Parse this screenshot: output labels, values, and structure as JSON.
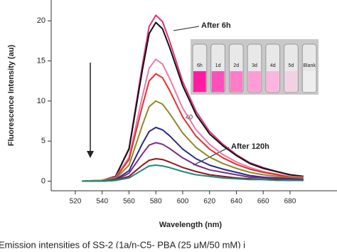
{
  "chart_data": {
    "type": "line",
    "x_label": "Wavelength (nm)",
    "y_label": "Fluorescence Intensity (au)",
    "x": [
      525,
      540,
      550,
      560,
      570,
      575,
      580,
      585,
      590,
      600,
      610,
      620,
      630,
      640,
      650,
      660,
      670,
      680,
      690
    ],
    "series": [
      {
        "color": "#e0307a",
        "values": [
          0,
          0.1,
          0.6,
          4.1,
          14.5,
          19.3,
          20.7,
          19.9,
          17.6,
          12.4,
          8.7,
          6.2,
          4.6,
          3.3,
          2.3,
          1.7,
          1.2,
          0.8,
          0.6
        ]
      },
      {
        "color": "#111111",
        "values": [
          0,
          0.1,
          0.6,
          4.0,
          13.9,
          18.4,
          19.8,
          19.0,
          16.8,
          11.9,
          8.3,
          5.9,
          4.4,
          3.2,
          2.2,
          1.6,
          1.2,
          0.8,
          0.6
        ]
      },
      {
        "color": "#e87aa8",
        "values": [
          0,
          0.1,
          0.5,
          3.0,
          10.6,
          14.1,
          15.2,
          14.6,
          12.9,
          9.1,
          6.4,
          4.6,
          3.3,
          2.4,
          1.7,
          1.2,
          0.9,
          0.6,
          0.5
        ]
      },
      {
        "color": "#e03030",
        "values": [
          0,
          0.1,
          0.4,
          2.7,
          9.4,
          12.5,
          13.4,
          12.9,
          11.4,
          8.0,
          5.6,
          4.0,
          2.9,
          2.1,
          1.5,
          1.1,
          0.8,
          0.5,
          0.4
        ]
      },
      {
        "color": "#8a8a2a",
        "values": [
          0,
          0.1,
          0.3,
          2.0,
          7.0,
          9.3,
          10.0,
          9.6,
          8.5,
          6.0,
          4.2,
          3.0,
          2.2,
          1.6,
          1.1,
          0.8,
          0.6,
          0.4,
          0.3
        ]
      },
      {
        "color": "#2a2a8a",
        "values": [
          0,
          0,
          0.2,
          1.3,
          4.7,
          6.2,
          6.7,
          6.4,
          5.7,
          4.0,
          2.8,
          2.0,
          1.5,
          1.1,
          0.7,
          0.5,
          0.4,
          0.3,
          0.2
        ]
      },
      {
        "color": "#7a2a8a",
        "values": [
          0,
          0,
          0.1,
          1.0,
          3.4,
          4.5,
          4.8,
          4.6,
          4.1,
          2.9,
          2.0,
          1.4,
          1.1,
          0.8,
          0.5,
          0.4,
          0.3,
          0.2,
          0.1
        ]
      },
      {
        "color": "#8a1a1a",
        "values": [
          0,
          0,
          0.1,
          0.6,
          2.0,
          2.6,
          2.8,
          2.7,
          2.4,
          1.7,
          1.2,
          0.8,
          0.6,
          0.4,
          0.3,
          0.2,
          0.2,
          0.1,
          0.1
        ]
      },
      {
        "color": "#1a8a7a",
        "values": [
          0,
          0,
          0.1,
          0.4,
          1.4,
          1.9,
          2.0,
          1.9,
          1.7,
          1.2,
          0.8,
          0.6,
          0.4,
          0.3,
          0.2,
          0.2,
          0.1,
          0.1,
          0.1
        ]
      }
    ],
    "xlim": [
      502,
      715
    ],
    "ylim": [
      -1.2,
      22.6
    ],
    "xticks": [
      520,
      540,
      560,
      580,
      600,
      620,
      640,
      660,
      680
    ],
    "yticks": [
      0,
      5,
      10,
      15,
      20
    ],
    "annotations": [
      "After 6h",
      "After 120h",
      "40"
    ],
    "inset_labels": [
      "6h",
      "1d",
      "2d",
      "3d",
      "4d",
      "5d",
      "Blank"
    ],
    "caption": "Emission intensities of SS-2 (1a/n-C5- PBA (25 μM/50 mM) i"
  }
}
